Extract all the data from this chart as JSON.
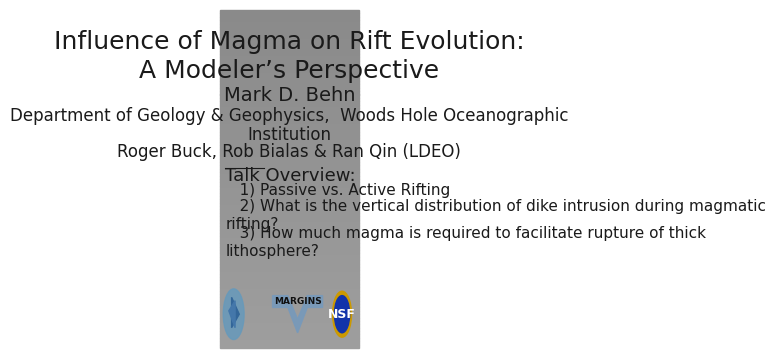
{
  "bg_color_top": "#aaaaaa",
  "bg_color_bottom": "#888888",
  "title_line1": "Influence of Magma on Rift Evolution:",
  "title_line2": "A Modeler’s Perspective",
  "author": "Mark D. Behn",
  "affiliation1": "Department of Geology & Geophysics,  Woods Hole Oceanographic",
  "affiliation2": "Institution",
  "collaborators": "Roger Buck, Rob Bialas & Ran Qin (LDEO)",
  "section_header": "Talk Overview:",
  "bullet1": "   1) Passive vs. Active Rifting",
  "bullet2": "   2) What is the vertical distribution of dike intrusion during magmatic\nrifting?",
  "bullet3": "   3) How much magma is required to facilitate rupture of thick\nlithosphere?",
  "text_color": "#1a1a1a",
  "title_fontsize": 18,
  "author_fontsize": 14,
  "affil_fontsize": 12,
  "header_fontsize": 13,
  "bullet_fontsize": 11
}
